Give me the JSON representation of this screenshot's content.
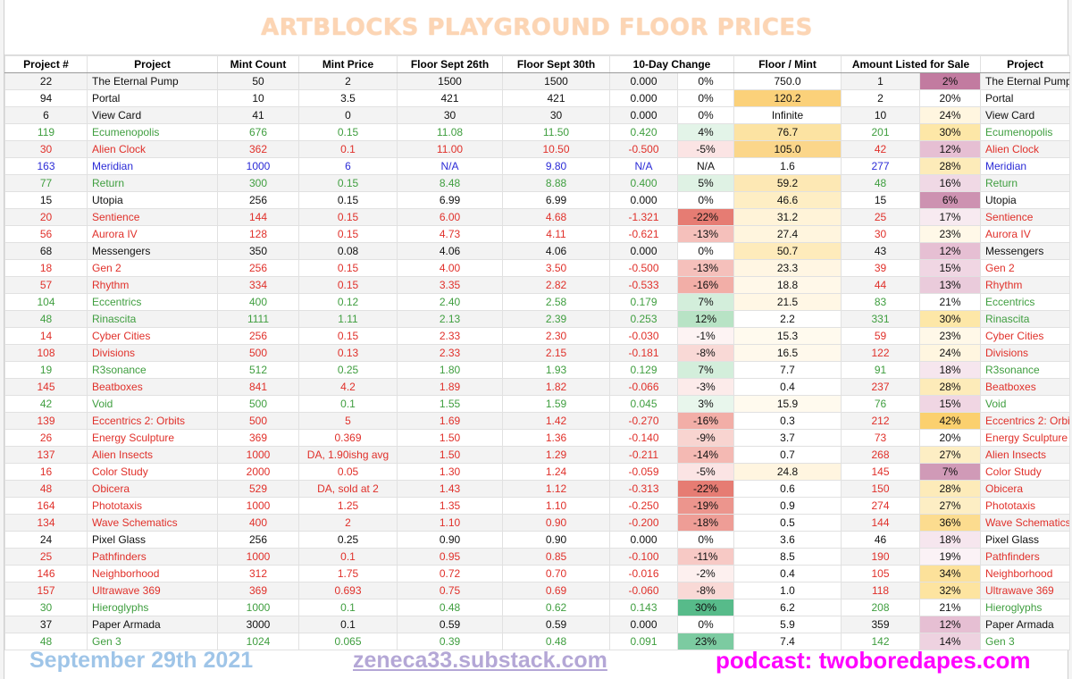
{
  "title": "ARTBLOCKS PLAYGROUND FLOOR PRICES",
  "headers": [
    "Project #",
    "Project",
    "Mint Count",
    "Mint Price",
    "Floor Sept 26th",
    "Floor Sept 30th",
    "10-Day Change",
    "",
    "Floor / Mint",
    "Amount Listed for Sale",
    "",
    "Project"
  ],
  "rows": [
    {
      "num": "22",
      "name": "The Eternal Pump",
      "count": "50",
      "price": "2",
      "f26": "1500",
      "f30": "1500",
      "change": "0.000",
      "pct": "0%",
      "fm": "750.0",
      "listed": "1",
      "lpct": "2%",
      "name2": "The Eternal Pump",
      "color": "black",
      "pct_bg": "#ffffff",
      "fm_bg": "#ffffff",
      "lp_bg": "#c27ba0"
    },
    {
      "num": "94",
      "name": "Portal",
      "count": "10",
      "price": "3.5",
      "f26": "421",
      "f30": "421",
      "change": "0.000",
      "pct": "0%",
      "fm": "120.2",
      "listed": "2",
      "lpct": "20%",
      "name2": "Portal",
      "color": "black",
      "pct_bg": "#ffffff",
      "fm_bg": "#fbd17a",
      "lp_bg": "#ffffff"
    },
    {
      "num": "6",
      "name": "View Card",
      "count": "41",
      "price": "0",
      "f26": "30",
      "f30": "30",
      "change": "0.000",
      "pct": "0%",
      "fm": "Infinite",
      "listed": "10",
      "lpct": "24%",
      "name2": "View Card",
      "color": "black",
      "pct_bg": "#ffffff",
      "fm_bg": "#ffffff",
      "lp_bg": "#fff6e0"
    },
    {
      "num": "119",
      "name": "Ecumenopolis",
      "count": "676",
      "price": "0.15",
      "f26": "11.08",
      "f30": "11.50",
      "change": "0.420",
      "pct": "4%",
      "fm": "76.7",
      "listed": "201",
      "lpct": "30%",
      "name2": "Ecumenopolis",
      "color": "green",
      "pct_bg": "#e3f4e8",
      "fm_bg": "#fce3a2",
      "lp_bg": "#fde7a7"
    },
    {
      "num": "30",
      "name": "Alien Clock",
      "count": "362",
      "price": "0.1",
      "f26": "11.00",
      "f30": "10.50",
      "change": "-0.500",
      "pct": "-5%",
      "fm": "105.0",
      "listed": "42",
      "lpct": "12%",
      "name2": "Alien Clock",
      "color": "red",
      "pct_bg": "#fbe4e4",
      "fm_bg": "#fbd68a",
      "lp_bg": "#e6bfd3"
    },
    {
      "num": "163",
      "name": "Meridian",
      "count": "1000",
      "price": "6",
      "f26": "N/A",
      "f30": "9.80",
      "change": "N/A",
      "pct": "N/A",
      "fm": "1.6",
      "listed": "277",
      "lpct": "28%",
      "name2": "Meridian",
      "color": "blue",
      "pct_bg": "#ffffff",
      "fm_bg": "#ffffff",
      "lp_bg": "#fdebb9"
    },
    {
      "num": "77",
      "name": "Return",
      "count": "300",
      "price": "0.15",
      "f26": "8.48",
      "f30": "8.88",
      "change": "0.400",
      "pct": "5%",
      "fm": "59.2",
      "listed": "48",
      "lpct": "16%",
      "name2": "Return",
      "color": "green",
      "pct_bg": "#dff2e4",
      "fm_bg": "#fde8b4",
      "lp_bg": "#f0d9e5"
    },
    {
      "num": "15",
      "name": "Utopia",
      "count": "256",
      "price": "0.15",
      "f26": "6.99",
      "f30": "6.99",
      "change": "0.000",
      "pct": "0%",
      "fm": "46.6",
      "listed": "15",
      "lpct": "6%",
      "name2": "Utopia",
      "color": "black",
      "pct_bg": "#ffffff",
      "fm_bg": "#feeec4",
      "lp_bg": "#cd92b1"
    },
    {
      "num": "20",
      "name": "Sentience",
      "count": "144",
      "price": "0.15",
      "f26": "6.00",
      "f30": "4.68",
      "change": "-1.321",
      "pct": "-22%",
      "fm": "31.2",
      "listed": "25",
      "lpct": "17%",
      "name2": "Sentience",
      "color": "red",
      "pct_bg": "#e67c73",
      "fm_bg": "#fff3d8",
      "lp_bg": "#f7eaf0"
    },
    {
      "num": "56",
      "name": "Aurora IV",
      "count": "128",
      "price": "0.15",
      "f26": "4.73",
      "f30": "4.11",
      "change": "-0.621",
      "pct": "-13%",
      "fm": "27.4",
      "listed": "30",
      "lpct": "23%",
      "name2": "Aurora IV",
      "color": "red",
      "pct_bg": "#f5c0bb",
      "fm_bg": "#fff5de",
      "lp_bg": "#fff8e8"
    },
    {
      "num": "68",
      "name": "Messengers",
      "count": "350",
      "price": "0.08",
      "f26": "4.06",
      "f30": "4.06",
      "change": "0.000",
      "pct": "0%",
      "fm": "50.7",
      "listed": "43",
      "lpct": "12%",
      "name2": "Messengers",
      "color": "black",
      "pct_bg": "#ffffff",
      "fm_bg": "#feebbb",
      "lp_bg": "#e6bfd3"
    },
    {
      "num": "18",
      "name": "Gen 2",
      "count": "256",
      "price": "0.15",
      "f26": "4.00",
      "f30": "3.50",
      "change": "-0.500",
      "pct": "-13%",
      "fm": "23.3",
      "listed": "39",
      "lpct": "15%",
      "name2": "Gen 2",
      "color": "red",
      "pct_bg": "#f5c0bb",
      "fm_bg": "#fff6e3",
      "lp_bg": "#f0d6e3"
    },
    {
      "num": "57",
      "name": "Rhythm",
      "count": "334",
      "price": "0.15",
      "f26": "3.35",
      "f30": "2.82",
      "change": "-0.533",
      "pct": "-16%",
      "fm": "18.8",
      "listed": "44",
      "lpct": "13%",
      "name2": "Rhythm",
      "color": "red",
      "pct_bg": "#f2aea7",
      "fm_bg": "#fff8e9",
      "lp_bg": "#eacbdb"
    },
    {
      "num": "104",
      "name": "Eccentrics",
      "count": "400",
      "price": "0.12",
      "f26": "2.40",
      "f30": "2.58",
      "change": "0.179",
      "pct": "7%",
      "fm": "21.5",
      "listed": "83",
      "lpct": "21%",
      "name2": "Eccentrics",
      "color": "green",
      "pct_bg": "#d3eedb",
      "fm_bg": "#fff7e5",
      "lp_bg": "#ffffff"
    },
    {
      "num": "48",
      "name": "Rinascita",
      "count": "1111",
      "price": "1.11",
      "f26": "2.13",
      "f30": "2.39",
      "change": "0.253",
      "pct": "12%",
      "fm": "2.2",
      "listed": "331",
      "lpct": "30%",
      "name2": "Rinascita",
      "color": "green",
      "pct_bg": "#b8e3c5",
      "fm_bg": "#ffffff",
      "lp_bg": "#fde7a7"
    },
    {
      "num": "14",
      "name": "Cyber Cities",
      "count": "256",
      "price": "0.15",
      "f26": "2.33",
      "f30": "2.30",
      "change": "-0.030",
      "pct": "-1%",
      "fm": "15.3",
      "listed": "59",
      "lpct": "23%",
      "name2": "Cyber Cities",
      "color": "red",
      "pct_bg": "#fdf3f3",
      "fm_bg": "#fffaee",
      "lp_bg": "#fff8e8"
    },
    {
      "num": "108",
      "name": "Divisions",
      "count": "500",
      "price": "0.13",
      "f26": "2.33",
      "f30": "2.15",
      "change": "-0.181",
      "pct": "-8%",
      "fm": "16.5",
      "listed": "122",
      "lpct": "24%",
      "name2": "Divisions",
      "color": "red",
      "pct_bg": "#f9d9d6",
      "fm_bg": "#fff9ec",
      "lp_bg": "#fff6e0"
    },
    {
      "num": "19",
      "name": "R3sonance",
      "count": "512",
      "price": "0.25",
      "f26": "1.80",
      "f30": "1.93",
      "change": "0.129",
      "pct": "7%",
      "fm": "7.7",
      "listed": "91",
      "lpct": "18%",
      "name2": "R3sonance",
      "color": "green",
      "pct_bg": "#d3eedb",
      "fm_bg": "#ffffff",
      "lp_bg": "#f6e6ee"
    },
    {
      "num": "145",
      "name": "Beatboxes",
      "count": "841",
      "price": "4.2",
      "f26": "1.89",
      "f30": "1.82",
      "change": "-0.066",
      "pct": "-3%",
      "fm": "0.4",
      "listed": "237",
      "lpct": "28%",
      "name2": "Beatboxes",
      "color": "red",
      "pct_bg": "#fcebea",
      "fm_bg": "#ffffff",
      "lp_bg": "#fdebb9"
    },
    {
      "num": "42",
      "name": "Void",
      "count": "500",
      "price": "0.1",
      "f26": "1.55",
      "f30": "1.59",
      "change": "0.045",
      "pct": "3%",
      "fm": "15.9",
      "listed": "76",
      "lpct": "15%",
      "name2": "Void",
      "color": "green",
      "pct_bg": "#e8f6ec",
      "fm_bg": "#fffaee",
      "lp_bg": "#f0d6e3"
    },
    {
      "num": "139",
      "name": "Eccentrics 2: Orbits",
      "count": "500",
      "price": "5",
      "f26": "1.69",
      "f30": "1.42",
      "change": "-0.270",
      "pct": "-16%",
      "fm": "0.3",
      "listed": "212",
      "lpct": "42%",
      "name2": "Eccentrics 2: Orbits",
      "color": "red",
      "pct_bg": "#f2aea7",
      "fm_bg": "#ffffff",
      "lp_bg": "#fbd06e"
    },
    {
      "num": "26",
      "name": "Energy Sculpture",
      "count": "369",
      "price": "0.369",
      "f26": "1.50",
      "f30": "1.36",
      "change": "-0.140",
      "pct": "-9%",
      "fm": "3.7",
      "listed": "73",
      "lpct": "20%",
      "name2": "Energy Sculpture",
      "color": "red",
      "pct_bg": "#f8d4d0",
      "fm_bg": "#ffffff",
      "lp_bg": "#ffffff"
    },
    {
      "num": "137",
      "name": "Alien Insects",
      "count": "1000",
      "price": "DA, 1.90ishg avg",
      "f26": "1.50",
      "f30": "1.29",
      "change": "-0.211",
      "pct": "-14%",
      "fm": "0.7",
      "listed": "268",
      "lpct": "27%",
      "name2": "Alien Insects",
      "color": "red",
      "pct_bg": "#f4b9b3",
      "fm_bg": "#ffffff",
      "lp_bg": "#fdeec4"
    },
    {
      "num": "16",
      "name": "Color Study",
      "count": "2000",
      "price": "0.05",
      "f26": "1.30",
      "f30": "1.24",
      "change": "-0.059",
      "pct": "-5%",
      "fm": "24.8",
      "listed": "145",
      "lpct": "7%",
      "name2": "Color Study",
      "color": "red",
      "pct_bg": "#fbe4e4",
      "fm_bg": "#fff5e0",
      "lp_bg": "#d09ab7"
    },
    {
      "num": "48",
      "name": "Obicera",
      "count": "529",
      "price": "DA, sold at 2",
      "f26": "1.43",
      "f30": "1.12",
      "change": "-0.313",
      "pct": "-22%",
      "fm": "0.6",
      "listed": "150",
      "lpct": "28%",
      "name2": "Obicera",
      "color": "red",
      "pct_bg": "#e67c73",
      "fm_bg": "#ffffff",
      "lp_bg": "#fdebb9"
    },
    {
      "num": "164",
      "name": "Phototaxis",
      "count": "1000",
      "price": "1.25",
      "f26": "1.35",
      "f30": "1.10",
      "change": "-0.250",
      "pct": "-19%",
      "fm": "0.9",
      "listed": "274",
      "lpct": "27%",
      "name2": "Phototaxis",
      "color": "red",
      "pct_bg": "#ec958d",
      "fm_bg": "#ffffff",
      "lp_bg": "#fdeec4"
    },
    {
      "num": "134",
      "name": "Wave Schematics",
      "count": "400",
      "price": "2",
      "f26": "1.10",
      "f30": "0.90",
      "change": "-0.200",
      "pct": "-18%",
      "fm": "0.5",
      "listed": "144",
      "lpct": "36%",
      "name2": "Wave Schematics",
      "color": "red",
      "pct_bg": "#ee9d96",
      "fm_bg": "#ffffff",
      "lp_bg": "#fcdc8f"
    },
    {
      "num": "24",
      "name": "Pixel Glass",
      "count": "256",
      "price": "0.25",
      "f26": "0.90",
      "f30": "0.90",
      "change": "0.000",
      "pct": "0%",
      "fm": "3.6",
      "listed": "46",
      "lpct": "18%",
      "name2": "Pixel Glass",
      "color": "black",
      "pct_bg": "#ffffff",
      "fm_bg": "#ffffff",
      "lp_bg": "#f6e6ee"
    },
    {
      "num": "25",
      "name": "Pathfinders",
      "count": "1000",
      "price": "0.1",
      "f26": "0.95",
      "f30": "0.85",
      "change": "-0.100",
      "pct": "-11%",
      "fm": "8.5",
      "listed": "190",
      "lpct": "19%",
      "name2": "Pathfinders",
      "color": "red",
      "pct_bg": "#f7c9c5",
      "fm_bg": "#ffffff",
      "lp_bg": "#fbf2f6"
    },
    {
      "num": "146",
      "name": "Neighborhood",
      "count": "312",
      "price": "1.75",
      "f26": "0.72",
      "f30": "0.70",
      "change": "-0.016",
      "pct": "-2%",
      "fm": "0.4",
      "listed": "105",
      "lpct": "34%",
      "name2": "Neighborhood",
      "color": "red",
      "pct_bg": "#fdf0ef",
      "fm_bg": "#ffffff",
      "lp_bg": "#fce19a"
    },
    {
      "num": "157",
      "name": "Ultrawave 369",
      "count": "369",
      "price": "0.693",
      "f26": "0.75",
      "f30": "0.69",
      "change": "-0.060",
      "pct": "-8%",
      "fm": "1.0",
      "listed": "118",
      "lpct": "32%",
      "name2": "Ultrawave 369",
      "color": "red",
      "pct_bg": "#f9d9d6",
      "fm_bg": "#ffffff",
      "lp_bg": "#fde4a0"
    },
    {
      "num": "30",
      "name": "Hieroglyphs",
      "count": "1000",
      "price": "0.1",
      "f26": "0.48",
      "f30": "0.62",
      "change": "0.143",
      "pct": "30%",
      "fm": "6.2",
      "listed": "208",
      "lpct": "21%",
      "name2": "Hieroglyphs",
      "color": "green",
      "pct_bg": "#57bb8a",
      "fm_bg": "#ffffff",
      "lp_bg": "#ffffff"
    },
    {
      "num": "37",
      "name": "Paper Armada",
      "count": "3000",
      "price": "0.1",
      "f26": "0.59",
      "f30": "0.59",
      "change": "0.000",
      "pct": "0%",
      "fm": "5.9",
      "listed": "359",
      "lpct": "12%",
      "name2": "Paper Armada",
      "color": "black",
      "pct_bg": "#ffffff",
      "fm_bg": "#ffffff",
      "lp_bg": "#e6bfd3"
    },
    {
      "num": "48",
      "name": "Gen 3",
      "count": "1024",
      "price": "0.065",
      "f26": "0.39",
      "f30": "0.48",
      "change": "0.091",
      "pct": "23%",
      "fm": "7.4",
      "listed": "142",
      "lpct": "14%",
      "name2": "Gen 3",
      "color": "green",
      "pct_bg": "#7ccba1",
      "fm_bg": "#ffffff",
      "lp_bg": "#eed2e0"
    }
  ],
  "footer": {
    "date": "September 29th 2021",
    "substack": "zeneca33.substack.com",
    "podcast": "podcast: twoboredapes.com"
  }
}
